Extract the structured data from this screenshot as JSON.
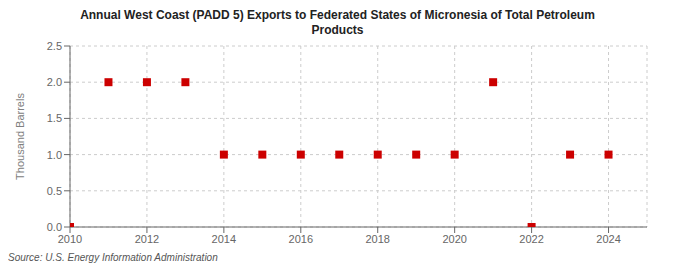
{
  "chart_data": {
    "type": "scatter",
    "title": "Annual West Coast (PADD 5) Exports to Federated States of Micronesia of Total Petroleum\nProducts",
    "ylabel": "Thousand Barrels",
    "annotations": [
      "Source: U.S. Energy Information Administration"
    ],
    "x": [
      2010,
      2011,
      2012,
      2013,
      2014,
      2015,
      2016,
      2017,
      2018,
      2019,
      2020,
      2021,
      2022,
      2023,
      2024
    ],
    "values": [
      0,
      2,
      2,
      2,
      1,
      1,
      1,
      1,
      1,
      1,
      1,
      2,
      0,
      1,
      1
    ],
    "color": "#cc0000",
    "marker": "square",
    "xlim": [
      2010,
      2025
    ],
    "ylim": [
      0,
      2.5
    ],
    "xticks": [
      2010,
      2012,
      2014,
      2016,
      2018,
      2020,
      2022,
      2024
    ],
    "yticks": [
      {
        "value": 0,
        "label": "0.0"
      },
      0.5,
      {
        "value": 1,
        "label": "1.0"
      },
      1.5,
      {
        "value": 2,
        "label": "2.0"
      },
      2.5
    ],
    "grid": true
  }
}
